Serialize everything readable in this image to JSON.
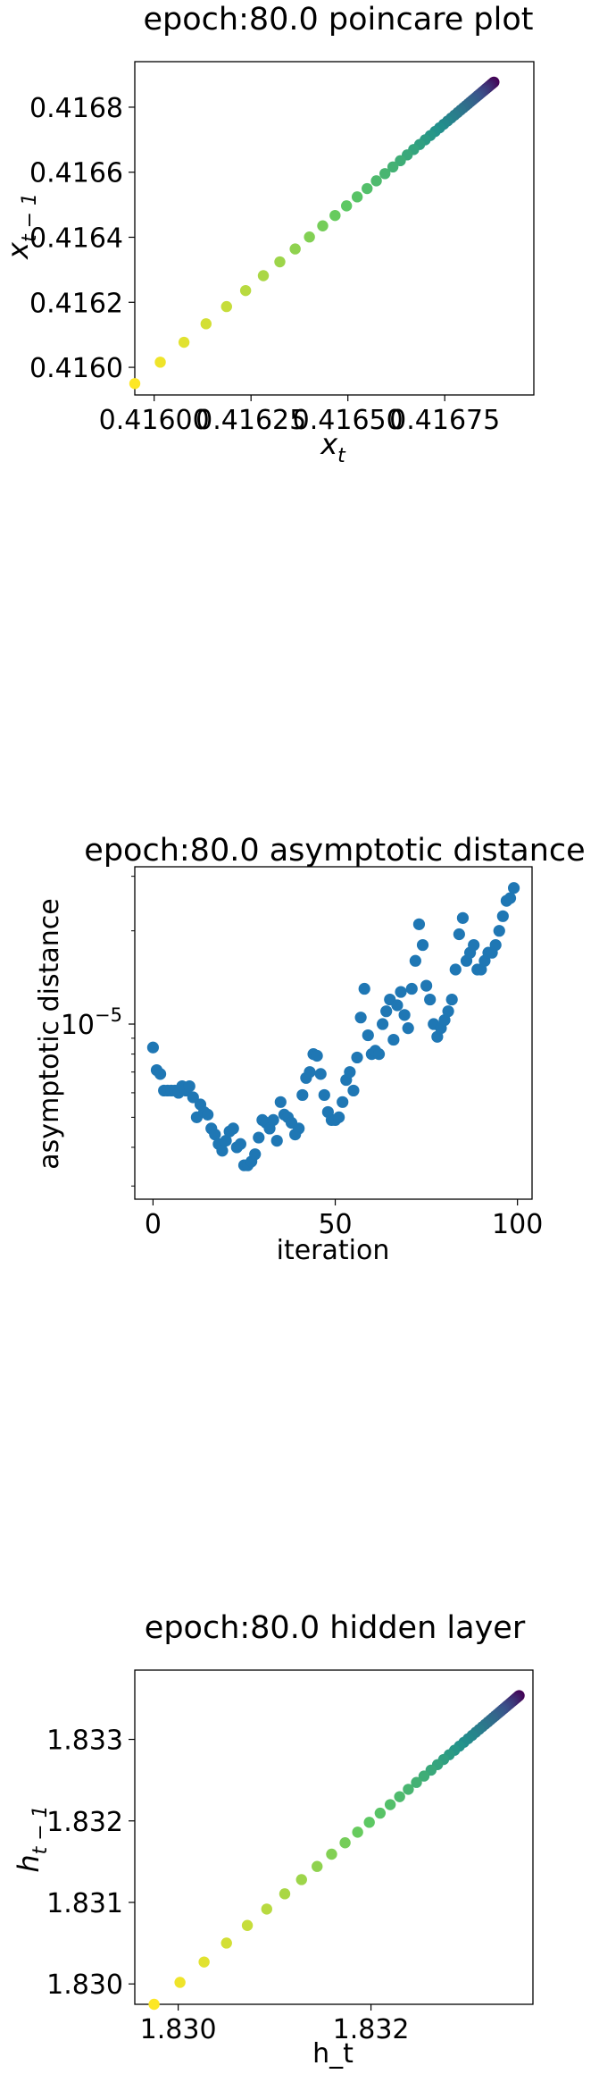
{
  "chart_data": [
    {
      "type": "scatter",
      "title": "epoch:80.0 poincare plot",
      "xlabel": "x_t",
      "ylabel": "x_{t-1}",
      "xlim": [
        0.41595,
        0.41698
      ],
      "ylim": [
        0.415915,
        0.41694
      ],
      "xticks": [
        0.416,
        0.41625,
        0.4165,
        0.41675
      ],
      "xtick_labels": [
        "0.41600",
        "0.41625",
        "0.41650",
        "0.41675"
      ],
      "yticks": [
        0.416,
        0.4162,
        0.4164,
        0.4166,
        0.4168
      ],
      "ytick_labels": [
        "0.4160",
        "0.4162",
        "0.4164",
        "0.4166",
        "0.4168"
      ],
      "colormap": [
        "#440154",
        "#3b528b",
        "#21918c",
        "#5ec962",
        "#fde725"
      ],
      "series": [
        {
          "start": 0.41595,
          "end": 0.41689,
          "count": 60,
          "decay": 0.93
        }
      ]
    },
    {
      "type": "scatter",
      "title": "epoch:80.0 asymptotic distance",
      "xlabel": "iteration",
      "ylabel": "asymptotic distance",
      "yscale": "log",
      "xlim": [
        -5,
        104
      ],
      "ylim": [
        2.72e-06,
        3.22e-05
      ],
      "xticks": [
        0,
        50,
        100
      ],
      "xtick_labels": [
        "0",
        "50",
        "100"
      ],
      "yticks": [
        1e-05
      ],
      "ytick_labels": [
        "10",
        "−5"
      ],
      "color": "#1f77b4",
      "x": [
        0,
        1,
        2,
        3,
        4,
        5,
        6,
        7,
        8,
        9,
        10,
        11,
        12,
        13,
        14,
        15,
        16,
        17,
        18,
        19,
        20,
        21,
        22,
        23,
        24,
        25,
        26,
        27,
        28,
        29,
        30,
        31,
        32,
        33,
        34,
        35,
        36,
        37,
        38,
        39,
        40,
        41,
        42,
        43,
        44,
        45,
        46,
        47,
        48,
        49,
        50,
        51,
        52,
        53,
        54,
        55,
        56,
        57,
        58,
        59,
        60,
        61,
        62,
        63,
        64,
        65,
        66,
        67,
        68,
        69,
        70,
        71,
        72,
        73,
        74,
        75,
        76,
        77,
        78,
        79,
        80,
        81,
        82,
        83,
        84,
        85,
        86,
        87,
        88,
        89,
        90,
        91,
        92,
        93,
        94,
        95,
        96,
        97,
        98,
        99
      ],
      "y": [
        8.4e-06,
        7.1e-06,
        6.9e-06,
        6.1e-06,
        6.1e-06,
        6.1e-06,
        6.1e-06,
        6e-06,
        6.3e-06,
        6.1e-06,
        6.3e-06,
        5.8e-06,
        5e-06,
        5.5e-06,
        5.2e-06,
        5.1e-06,
        4.6e-06,
        4.4e-06,
        4.1e-06,
        3.9e-06,
        4.2e-06,
        4.5e-06,
        4.6e-06,
        4e-06,
        4.1e-06,
        3.5e-06,
        3.5e-06,
        3.6e-06,
        3.8e-06,
        4.3e-06,
        4.9e-06,
        4.8e-06,
        4.6e-06,
        4.9e-06,
        4.2e-06,
        5.6e-06,
        5.1e-06,
        5e-06,
        4.8e-06,
        4.4e-06,
        4.6e-06,
        5.9e-06,
        6.7e-06,
        7e-06,
        8e-06,
        7.9e-06,
        6.9e-06,
        5.9e-06,
        5.2e-06,
        4.9e-06,
        4.9e-06,
        5e-06,
        5.6e-06,
        6.6e-06,
        7e-06,
        6.1e-06,
        7.8e-06,
        1.05e-05,
        1.3e-05,
        9.2e-06,
        8e-06,
        8.2e-06,
        8e-06,
        1e-05,
        1.1e-05,
        1.2e-05,
        8.9e-06,
        1.15e-05,
        1.27e-05,
        1.07e-05,
        9.7e-06,
        1.3e-05,
        1.6e-05,
        2.1e-05,
        1.8e-05,
        1.33e-05,
        1.2e-05,
        1e-05,
        9.1e-06,
        9.7e-06,
        1.03e-05,
        1.1e-05,
        1.2e-05,
        1.5e-05,
        1.95e-05,
        2.2e-05,
        1.6e-05,
        1.7e-05,
        1.8e-05,
        1.5e-05,
        1.5e-05,
        1.6e-05,
        1.7e-05,
        1.7e-05,
        1.8e-05,
        2e-05,
        2.23e-05,
        2.5e-05,
        2.55e-05,
        2.75e-05
      ]
    },
    {
      "type": "scatter",
      "title": "epoch:80.0 hidden layer",
      "xlabel": "h_t",
      "ylabel": "h_{t-1}",
      "xlim": [
        1.82955,
        1.83368
      ],
      "ylim": [
        1.82975,
        1.83385
      ],
      "xticks": [
        1.83,
        1.832
      ],
      "xtick_labels": [
        "1.830",
        "1.832"
      ],
      "yticks": [
        1.83,
        1.831,
        1.832,
        1.833
      ],
      "ytick_labels": [
        "1.830",
        "1.831",
        "1.832",
        "1.833"
      ],
      "colormap": [
        "#440154",
        "#3b528b",
        "#21918c",
        "#5ec962",
        "#fde725"
      ],
      "series": [
        {
          "start": 1.82975,
          "end": 1.83359,
          "count": 60,
          "decay": 0.93
        }
      ]
    }
  ]
}
